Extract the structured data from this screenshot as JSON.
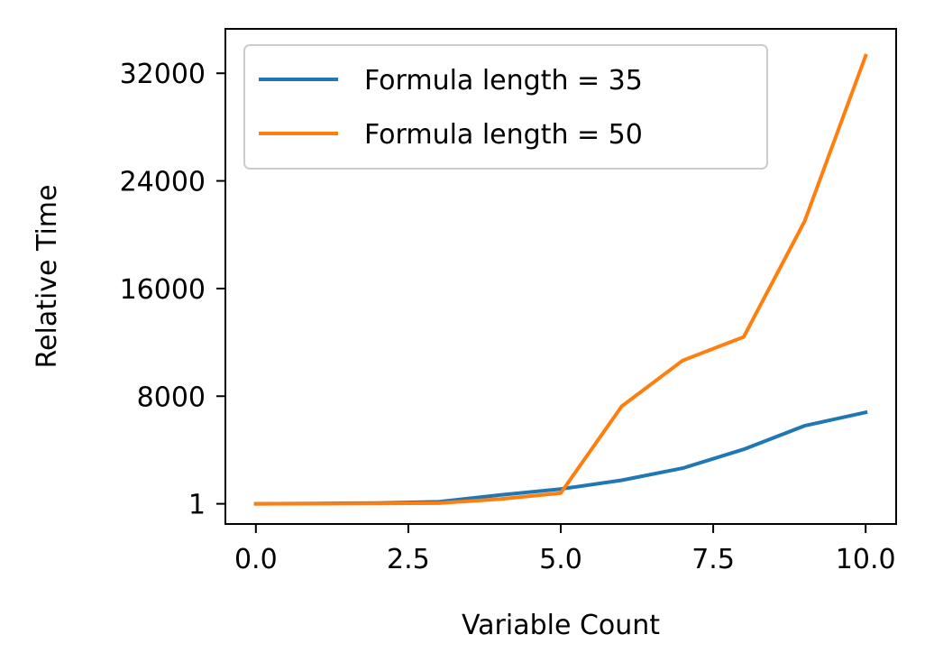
{
  "chart_data": {
    "type": "line",
    "title": "",
    "xlabel": "Variable Count",
    "ylabel": "Relative Time",
    "xlim": [
      -0.5,
      10.5
    ],
    "ylim": [
      -1500,
      35300
    ],
    "xticks": [
      0.0,
      2.5,
      5.0,
      7.5,
      10.0
    ],
    "xtick_labels": [
      "0.0",
      "2.5",
      "5.0",
      "7.5",
      "10.0"
    ],
    "yticks": [
      1,
      8000,
      16000,
      24000,
      32000
    ],
    "ytick_labels": [
      "1",
      "8000",
      "16000",
      "24000",
      "32000"
    ],
    "grid": false,
    "legend_position": "upper-left",
    "series": [
      {
        "name": "Formula length = 35",
        "color": "#1f77b4",
        "x": [
          0,
          1,
          2,
          3,
          4,
          5,
          6,
          7,
          8,
          9,
          10
        ],
        "values": [
          1,
          20,
          60,
          150,
          650,
          1100,
          1750,
          2650,
          4050,
          5800,
          6800
        ]
      },
      {
        "name": "Formula length = 50",
        "color": "#ff7f0e",
        "x": [
          0,
          1,
          2,
          3,
          4,
          5,
          6,
          7,
          8,
          9,
          10
        ],
        "values": [
          1,
          10,
          30,
          50,
          350,
          800,
          7250,
          10650,
          12400,
          21000,
          33300
        ]
      }
    ]
  }
}
